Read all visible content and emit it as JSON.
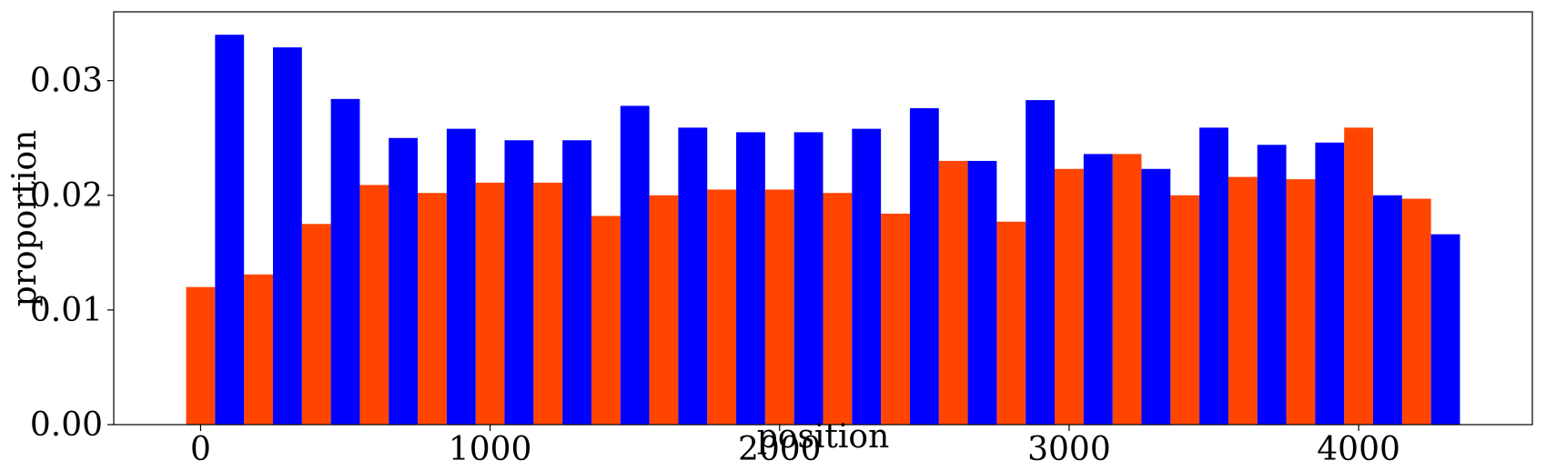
{
  "chart_data": {
    "type": "bar",
    "title": "",
    "xlabel": "position",
    "ylabel": "proportion",
    "xlim": [
      -300,
      4600
    ],
    "ylim": [
      0,
      0.036
    ],
    "xticks": [
      0,
      1000,
      2000,
      3000,
      4000
    ],
    "xtick_labels": [
      "0",
      "1000",
      "2000",
      "3000",
      "4000"
    ],
    "yticks": [
      0,
      0.01,
      0.02,
      0.03
    ],
    "ytick_labels": [
      "0.00",
      "0.01",
      "0.02",
      "0.03"
    ],
    "bin_width": 200,
    "bar_width": 100,
    "grid": false,
    "series": [
      {
        "color": "#ff4500",
        "x": [
          0,
          200,
          400,
          600,
          800,
          1000,
          1200,
          1400,
          1600,
          1800,
          2000,
          2200,
          2400,
          2600,
          2800,
          3000,
          3200,
          3400,
          3600,
          3800,
          4000,
          4200
        ],
        "values": [
          0.012,
          0.0131,
          0.0175,
          0.0209,
          0.0202,
          0.0211,
          0.0211,
          0.0182,
          0.02,
          0.0205,
          0.0205,
          0.0202,
          0.0184,
          0.023,
          0.0177,
          0.0223,
          0.0236,
          0.02,
          0.0216,
          0.0214,
          0.0259,
          0.0197
        ]
      },
      {
        "color": "#0000ff",
        "x": [
          100,
          300,
          500,
          700,
          900,
          1100,
          1300,
          1500,
          1700,
          1900,
          2100,
          2300,
          2500,
          2700,
          2900,
          3100,
          3300,
          3500,
          3700,
          3900,
          4100,
          4300
        ],
        "values": [
          0.034,
          0.0329,
          0.0284,
          0.025,
          0.0258,
          0.0248,
          0.0248,
          0.0278,
          0.0259,
          0.0255,
          0.0255,
          0.0258,
          0.0276,
          0.023,
          0.0283,
          0.0236,
          0.0223,
          0.0259,
          0.0244,
          0.0246,
          0.02,
          0.0166
        ]
      }
    ]
  }
}
